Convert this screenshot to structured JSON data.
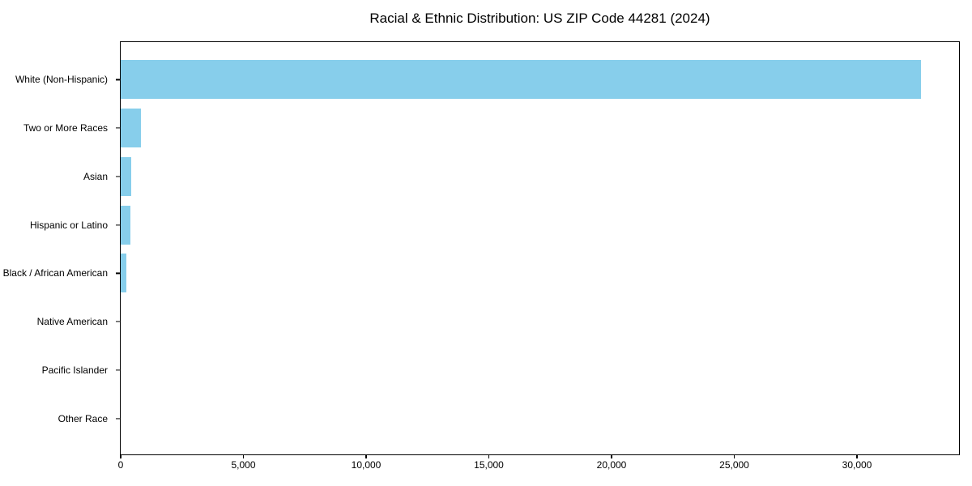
{
  "chart_data": {
    "type": "bar",
    "orientation": "horizontal",
    "title": "Racial & Ethnic Distribution: US ZIP Code 44281 (2024)",
    "categories": [
      "White (Non-Hispanic)",
      "Two or More Races",
      "Asian",
      "Hispanic or Latino",
      "Black / African American",
      "Native American",
      "Pacific Islander",
      "Other Race"
    ],
    "values": [
      32600,
      840,
      430,
      410,
      230,
      0,
      0,
      0
    ],
    "xlabel": "",
    "ylabel": "",
    "xlim": [
      0,
      34224
    ],
    "xticks": [
      0,
      5000,
      10000,
      15000,
      20000,
      25000,
      30000
    ],
    "xtick_labels": [
      "0",
      "5,000",
      "10,000",
      "15,000",
      "20,000",
      "25,000",
      "30,000"
    ],
    "bar_color": "#87CEEB",
    "axis_color": "#000000",
    "text_color": "#000000",
    "background_color": "#ffffff",
    "grid": false,
    "legend": null,
    "bar_height_fraction": 0.8
  }
}
